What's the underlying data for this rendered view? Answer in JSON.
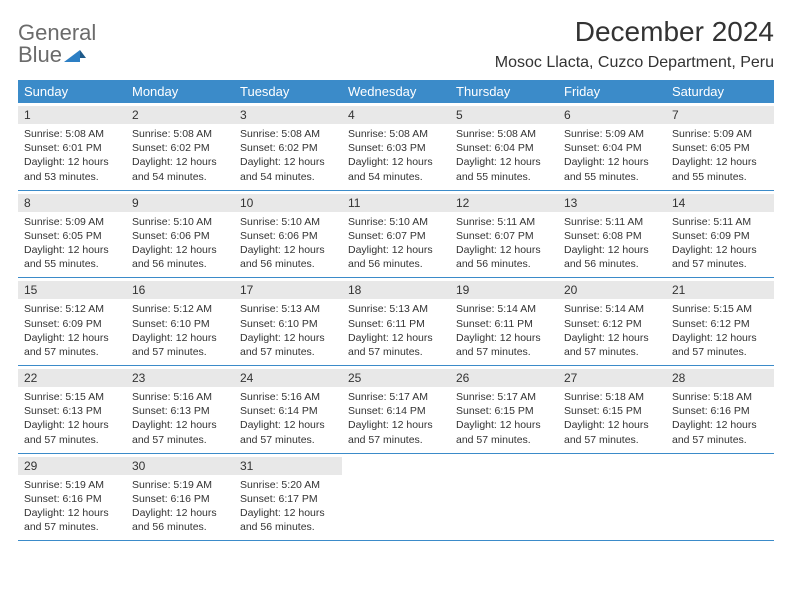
{
  "brand": {
    "name_part1": "General",
    "name_part2": "Blue"
  },
  "title": "December 2024",
  "location": "Mosoc Llacta, Cuzco Department, Peru",
  "day_headers": [
    "Sunday",
    "Monday",
    "Tuesday",
    "Wednesday",
    "Thursday",
    "Friday",
    "Saturday"
  ],
  "colors": {
    "header_bg": "#3b8bc9",
    "header_text": "#ffffff",
    "daynum_bg": "#e8e8e8",
    "border": "#3b8bc9",
    "text": "#333333",
    "logo_gray": "#6b6b6b",
    "logo_blue": "#2d7fc4"
  },
  "weeks": [
    [
      {
        "n": "1",
        "sr": "5:08 AM",
        "ss": "6:01 PM",
        "dl": "12 hours and 53 minutes."
      },
      {
        "n": "2",
        "sr": "5:08 AM",
        "ss": "6:02 PM",
        "dl": "12 hours and 54 minutes."
      },
      {
        "n": "3",
        "sr": "5:08 AM",
        "ss": "6:02 PM",
        "dl": "12 hours and 54 minutes."
      },
      {
        "n": "4",
        "sr": "5:08 AM",
        "ss": "6:03 PM",
        "dl": "12 hours and 54 minutes."
      },
      {
        "n": "5",
        "sr": "5:08 AM",
        "ss": "6:04 PM",
        "dl": "12 hours and 55 minutes."
      },
      {
        "n": "6",
        "sr": "5:09 AM",
        "ss": "6:04 PM",
        "dl": "12 hours and 55 minutes."
      },
      {
        "n": "7",
        "sr": "5:09 AM",
        "ss": "6:05 PM",
        "dl": "12 hours and 55 minutes."
      }
    ],
    [
      {
        "n": "8",
        "sr": "5:09 AM",
        "ss": "6:05 PM",
        "dl": "12 hours and 55 minutes."
      },
      {
        "n": "9",
        "sr": "5:10 AM",
        "ss": "6:06 PM",
        "dl": "12 hours and 56 minutes."
      },
      {
        "n": "10",
        "sr": "5:10 AM",
        "ss": "6:06 PM",
        "dl": "12 hours and 56 minutes."
      },
      {
        "n": "11",
        "sr": "5:10 AM",
        "ss": "6:07 PM",
        "dl": "12 hours and 56 minutes."
      },
      {
        "n": "12",
        "sr": "5:11 AM",
        "ss": "6:07 PM",
        "dl": "12 hours and 56 minutes."
      },
      {
        "n": "13",
        "sr": "5:11 AM",
        "ss": "6:08 PM",
        "dl": "12 hours and 56 minutes."
      },
      {
        "n": "14",
        "sr": "5:11 AM",
        "ss": "6:09 PM",
        "dl": "12 hours and 57 minutes."
      }
    ],
    [
      {
        "n": "15",
        "sr": "5:12 AM",
        "ss": "6:09 PM",
        "dl": "12 hours and 57 minutes."
      },
      {
        "n": "16",
        "sr": "5:12 AM",
        "ss": "6:10 PM",
        "dl": "12 hours and 57 minutes."
      },
      {
        "n": "17",
        "sr": "5:13 AM",
        "ss": "6:10 PM",
        "dl": "12 hours and 57 minutes."
      },
      {
        "n": "18",
        "sr": "5:13 AM",
        "ss": "6:11 PM",
        "dl": "12 hours and 57 minutes."
      },
      {
        "n": "19",
        "sr": "5:14 AM",
        "ss": "6:11 PM",
        "dl": "12 hours and 57 minutes."
      },
      {
        "n": "20",
        "sr": "5:14 AM",
        "ss": "6:12 PM",
        "dl": "12 hours and 57 minutes."
      },
      {
        "n": "21",
        "sr": "5:15 AM",
        "ss": "6:12 PM",
        "dl": "12 hours and 57 minutes."
      }
    ],
    [
      {
        "n": "22",
        "sr": "5:15 AM",
        "ss": "6:13 PM",
        "dl": "12 hours and 57 minutes."
      },
      {
        "n": "23",
        "sr": "5:16 AM",
        "ss": "6:13 PM",
        "dl": "12 hours and 57 minutes."
      },
      {
        "n": "24",
        "sr": "5:16 AM",
        "ss": "6:14 PM",
        "dl": "12 hours and 57 minutes."
      },
      {
        "n": "25",
        "sr": "5:17 AM",
        "ss": "6:14 PM",
        "dl": "12 hours and 57 minutes."
      },
      {
        "n": "26",
        "sr": "5:17 AM",
        "ss": "6:15 PM",
        "dl": "12 hours and 57 minutes."
      },
      {
        "n": "27",
        "sr": "5:18 AM",
        "ss": "6:15 PM",
        "dl": "12 hours and 57 minutes."
      },
      {
        "n": "28",
        "sr": "5:18 AM",
        "ss": "6:16 PM",
        "dl": "12 hours and 57 minutes."
      }
    ],
    [
      {
        "n": "29",
        "sr": "5:19 AM",
        "ss": "6:16 PM",
        "dl": "12 hours and 57 minutes."
      },
      {
        "n": "30",
        "sr": "5:19 AM",
        "ss": "6:16 PM",
        "dl": "12 hours and 56 minutes."
      },
      {
        "n": "31",
        "sr": "5:20 AM",
        "ss": "6:17 PM",
        "dl": "12 hours and 56 minutes."
      },
      null,
      null,
      null,
      null
    ]
  ]
}
